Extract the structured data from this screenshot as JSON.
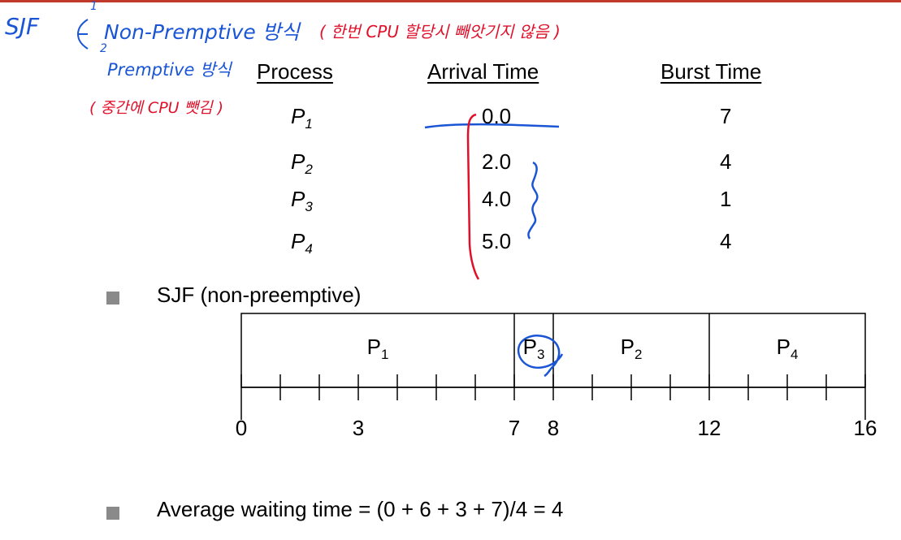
{
  "colors": {
    "top_rule": "#c0392b",
    "annotation_red": "#e0102a",
    "annotation_blue": "#1a55d6",
    "bullet": "#8a8a8a"
  },
  "handwriting": {
    "sjf": "SJF",
    "option1_number": "1",
    "option2_number": "2",
    "option1": "Non-Premptive 방식",
    "option1_note": "( 한번 CPU 할당시 빼앗기지 않음 )",
    "option2": "Premptive 방식",
    "option2_note": "( 중간에 CPU 뺏김 )"
  },
  "table": {
    "headers": {
      "process": "Process",
      "arrival": "Arrival Time",
      "burst": "Burst Time"
    },
    "rows": [
      {
        "name": "P",
        "sub": "1",
        "arrival": "0.0",
        "burst": "7"
      },
      {
        "name": "P",
        "sub": "2",
        "arrival": "2.0",
        "burst": "4"
      },
      {
        "name": "P",
        "sub": "3",
        "arrival": "4.0",
        "burst": "1"
      },
      {
        "name": "P",
        "sub": "4",
        "arrival": "5.0",
        "burst": "4"
      }
    ]
  },
  "bullets": {
    "sjf_title": "SJF (non-preemptive)",
    "avg_waiting": "Average waiting time = (0 + 6 + 3 + 7)/4  = 4"
  },
  "gantt": {
    "start": 0,
    "end": 16,
    "segments": [
      {
        "name": "P",
        "sub": "1",
        "start": 0,
        "end": 7
      },
      {
        "name": "P",
        "sub": "3",
        "start": 7,
        "end": 8
      },
      {
        "name": "P",
        "sub": "2",
        "start": 8,
        "end": 12
      },
      {
        "name": "P",
        "sub": "4",
        "start": 12,
        "end": 16
      }
    ],
    "tick_labels": [
      "0",
      "3",
      "7",
      "8",
      "12",
      "16"
    ]
  }
}
